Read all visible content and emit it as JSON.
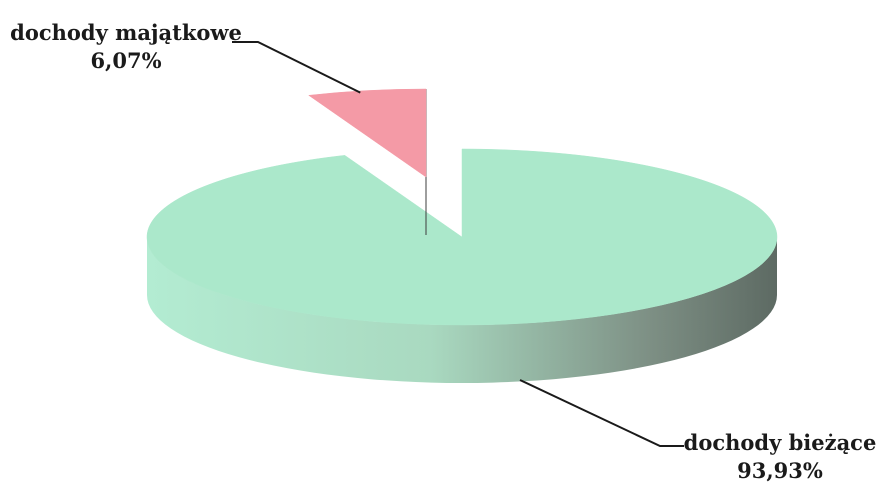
{
  "chart_data": {
    "type": "pie",
    "title": "",
    "style": "3d-exploded",
    "slices": [
      {
        "label": "dochody bieżące",
        "value": 93.93,
        "value_label": "93,93%",
        "color": "#abe8cb",
        "side_color": "#6f7f76"
      },
      {
        "label": "dochody majątkowe",
        "value": 6.07,
        "value_label": "6,07%",
        "color": "#f49aa6",
        "side_color": "#5b5758"
      }
    ]
  }
}
